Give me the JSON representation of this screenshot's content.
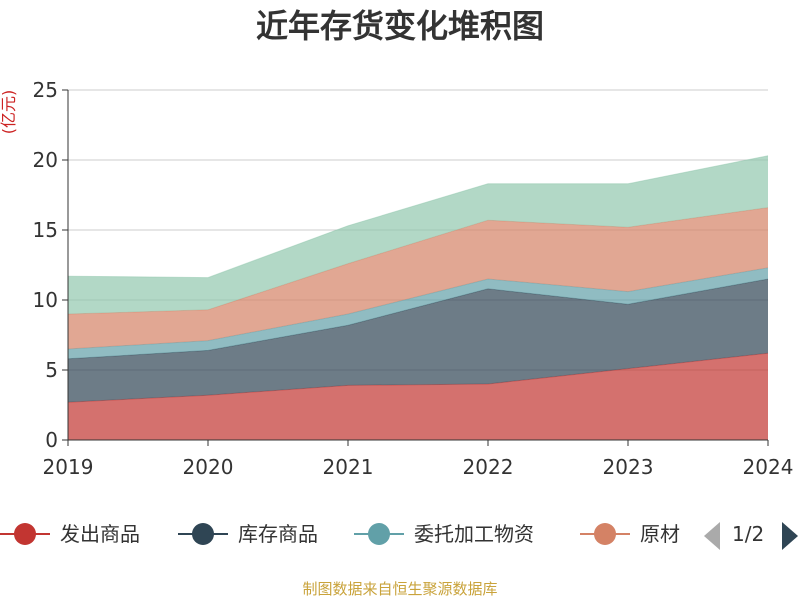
{
  "title": "近年存货变化堆积图",
  "source": "制图数据来自恒生聚源数据库",
  "legend": {
    "items": [
      {
        "label": "发出商品",
        "color": "#c23531"
      },
      {
        "label": "库存商品",
        "color": "#2f4554"
      },
      {
        "label": "委托加工物资",
        "color": "#61a0a8"
      },
      {
        "label": "原材",
        "color": "#d48265"
      }
    ],
    "page": "1/2"
  },
  "chart_data": {
    "type": "area",
    "stacked": true,
    "ylabel": "(亿元)",
    "xlabel": "",
    "ylim": [
      0,
      25
    ],
    "yticks": [
      0,
      5,
      10,
      15,
      20,
      25
    ],
    "grid": true,
    "legend_position": "bottom",
    "categories": [
      "2019",
      "2020",
      "2021",
      "2022",
      "2023",
      "2024"
    ],
    "series": [
      {
        "name": "发出商品",
        "color": "#c23531",
        "values": [
          2.7,
          3.2,
          3.9,
          4.0,
          5.1,
          6.2
        ]
      },
      {
        "name": "库存商品",
        "color": "#2f4554",
        "values": [
          3.1,
          3.2,
          4.3,
          6.8,
          4.6,
          5.3
        ]
      },
      {
        "name": "委托加工物资",
        "color": "#61a0a8",
        "values": [
          0.7,
          0.7,
          0.8,
          0.7,
          0.9,
          0.8
        ]
      },
      {
        "name": "原材",
        "color": "#d48265",
        "values": [
          2.5,
          2.2,
          3.6,
          4.2,
          4.6,
          4.3
        ]
      },
      {
        "name": "",
        "color": "#91c7ae",
        "values": [
          2.7,
          2.3,
          2.7,
          2.6,
          3.1,
          3.7
        ]
      }
    ]
  }
}
